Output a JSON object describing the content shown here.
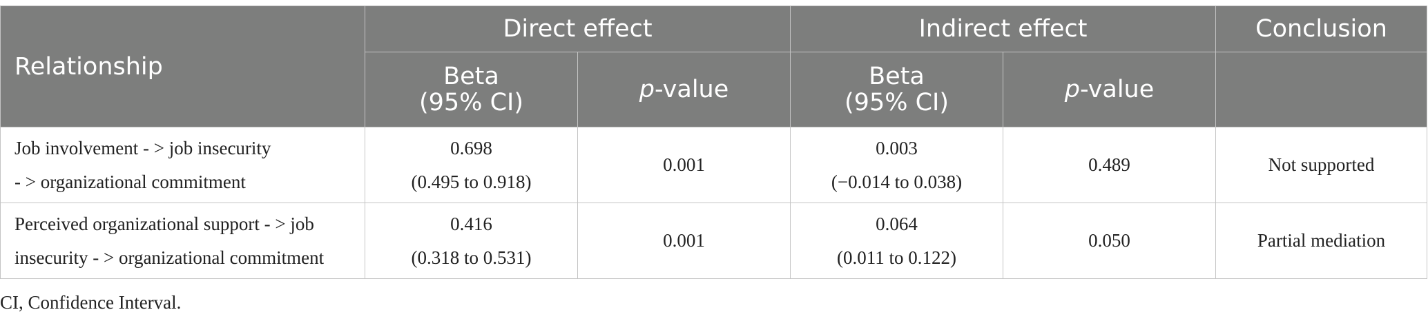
{
  "table": {
    "header": {
      "relationship": "Relationship",
      "direct_effect": "Direct effect",
      "indirect_effect": "Indirect effect",
      "conclusion": "Conclusion",
      "beta_line1": "Beta",
      "beta_line2": "(95% CI)",
      "p_italic": "p",
      "p_suffix": "-value"
    },
    "rows": [
      {
        "relationship_line1": "Job involvement - > job insecurity",
        "relationship_line2": "- > organizational commitment",
        "direct_beta": "0.698",
        "direct_ci": "(0.495 to 0.918)",
        "direct_p": "0.001",
        "indirect_beta": "0.003",
        "indirect_ci": "(−0.014 to 0.038)",
        "indirect_p": "0.489",
        "conclusion": "Not supported"
      },
      {
        "relationship_line1": "Perceived organizational support - > job",
        "relationship_line2": "insecurity - > organizational commitment",
        "direct_beta": "0.416",
        "direct_ci": "(0.318 to 0.531)",
        "direct_p": "0.001",
        "indirect_beta": "0.064",
        "indirect_ci": "(0.011 to 0.122)",
        "indirect_p": "0.050",
        "conclusion": "Partial mediation"
      }
    ]
  },
  "footnote": "CI, Confidence Interval."
}
